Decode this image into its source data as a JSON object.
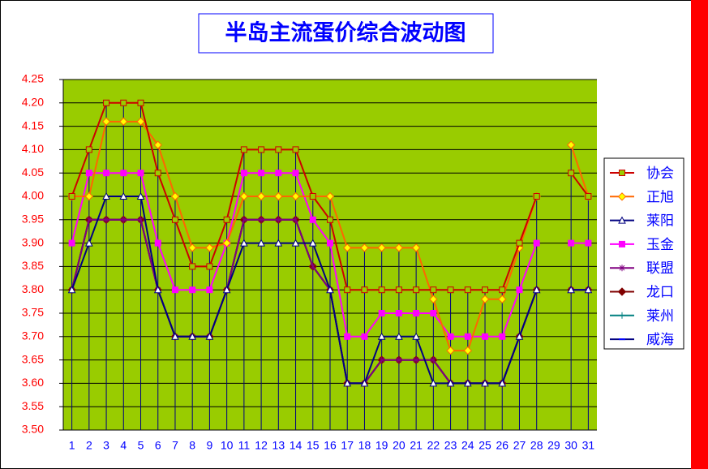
{
  "chart_data": {
    "type": "line",
    "title": "半岛主流蛋价综合波动图",
    "categories": [
      "1",
      "2",
      "3",
      "4",
      "5",
      "6",
      "7",
      "8",
      "9",
      "10",
      "11",
      "12",
      "13",
      "14",
      "15",
      "16",
      "17",
      "18",
      "19",
      "20",
      "21",
      "22",
      "23",
      "24",
      "25",
      "26",
      "27",
      "28",
      "29",
      "30",
      "31"
    ],
    "ylim": [
      3.5,
      4.25
    ],
    "yticks": [
      {
        "value": 3.5,
        "label": "3.50"
      },
      3.55,
      {
        "value": 3.6,
        "label": "3.60"
      },
      3.65,
      {
        "value": 3.7,
        "label": "3.70"
      },
      3.75,
      {
        "value": 3.8,
        "label": "3.80"
      },
      3.85,
      {
        "value": 3.9,
        "label": "3.90"
      },
      3.95,
      {
        "value": 4.0,
        "label": "4.00"
      },
      4.05,
      {
        "value": 4.1,
        "label": "4.10"
      },
      4.15,
      {
        "value": 4.2,
        "label": "4.20"
      },
      4.25
    ],
    "grid": true,
    "legend": "right",
    "series": [
      {
        "name": "协会",
        "color": "#cc0000",
        "marker": "square",
        "marker_color": "#99cc00",
        "values": [
          4.0,
          4.1,
          4.2,
          4.2,
          4.2,
          4.05,
          3.95,
          3.85,
          3.85,
          3.95,
          4.1,
          4.1,
          4.1,
          4.1,
          4.0,
          3.95,
          3.8,
          3.8,
          3.8,
          3.8,
          3.8,
          3.8,
          3.8,
          3.8,
          3.8,
          3.8,
          3.9,
          4.0,
          null,
          4.05,
          4.0
        ]
      },
      {
        "name": "正旭",
        "color": "#ff6600",
        "marker": "diamond",
        "marker_color": "#ffff00",
        "values": [
          4.0,
          4.0,
          4.16,
          4.16,
          4.16,
          4.11,
          4.0,
          3.89,
          3.89,
          3.9,
          4.0,
          4.0,
          4.0,
          4.0,
          4.0,
          4.0,
          3.89,
          3.89,
          3.89,
          3.89,
          3.89,
          3.78,
          3.67,
          3.67,
          3.78,
          3.78,
          3.89,
          4.0,
          null,
          4.11,
          4.0
        ]
      },
      {
        "name": "莱阳",
        "color": "#000080",
        "marker": "triangle",
        "marker_color": "#ffffff",
        "values": [
          3.8,
          3.9,
          4.0,
          4.0,
          4.0,
          3.8,
          3.7,
          3.7,
          3.7,
          3.8,
          3.9,
          3.9,
          3.9,
          3.9,
          3.9,
          3.8,
          3.6,
          3.6,
          3.7,
          3.7,
          3.7,
          3.6,
          3.6,
          3.6,
          3.6,
          3.6,
          3.7,
          3.8,
          null,
          3.8,
          3.8
        ]
      },
      {
        "name": "玉金",
        "color": "#ff00ff",
        "marker": "square",
        "marker_color": "#ff00ff",
        "values": [
          3.9,
          4.05,
          4.05,
          4.05,
          4.05,
          3.9,
          3.8,
          3.8,
          3.8,
          3.9,
          4.05,
          4.05,
          4.05,
          4.05,
          3.95,
          3.9,
          3.7,
          3.7,
          3.75,
          3.75,
          3.75,
          3.75,
          3.7,
          3.7,
          3.7,
          3.7,
          3.8,
          3.9,
          null,
          3.9,
          3.9
        ]
      },
      {
        "name": "联盟",
        "color": "#800080",
        "marker": "star",
        "marker_color": "#800080",
        "values": [
          3.8,
          3.95,
          3.95,
          3.95,
          3.95,
          3.8,
          3.7,
          3.7,
          3.7,
          3.8,
          3.95,
          3.95,
          3.95,
          3.95,
          3.85,
          3.8,
          3.6,
          3.6,
          3.65,
          3.65,
          3.65,
          3.65,
          3.6,
          3.6,
          3.6,
          3.6,
          3.7,
          3.8,
          null,
          3.8,
          3.8
        ]
      },
      {
        "name": "龙口",
        "color": "#800000",
        "marker": "diamond",
        "marker_color": "#800000",
        "values": [
          3.8,
          3.95,
          3.95,
          3.95,
          3.95,
          3.8,
          3.7,
          3.7,
          3.7,
          3.8,
          3.95,
          3.95,
          3.95,
          3.95,
          3.85,
          3.8,
          3.6,
          3.6,
          3.65,
          3.65,
          3.65,
          3.65,
          3.6,
          3.6,
          3.6,
          3.6,
          3.7,
          3.8,
          null,
          3.8,
          3.8
        ]
      },
      {
        "name": "莱州",
        "color": "#008080",
        "marker": "plus",
        "marker_color": "#008080",
        "values": [
          3.8,
          3.95,
          3.95,
          3.95,
          3.95,
          3.8,
          3.7,
          3.7,
          3.7,
          3.8,
          3.95,
          3.95,
          3.95,
          3.95,
          3.85,
          3.8,
          3.6,
          3.6,
          3.65,
          3.65,
          3.65,
          3.65,
          3.6,
          3.6,
          3.6,
          3.6,
          3.7,
          3.8,
          null,
          3.8,
          3.8
        ]
      },
      {
        "name": "威海",
        "color": "#000080",
        "marker": "dash",
        "marker_color": "#0000ff",
        "values": [
          3.8,
          3.95,
          3.95,
          3.95,
          3.95,
          3.8,
          3.7,
          3.7,
          3.7,
          3.8,
          3.95,
          3.95,
          3.95,
          3.95,
          3.85,
          3.8,
          3.6,
          3.6,
          3.65,
          3.65,
          3.65,
          3.65,
          3.6,
          3.6,
          3.6,
          3.6,
          3.7,
          3.8,
          null,
          3.8,
          3.8
        ]
      }
    ]
  }
}
